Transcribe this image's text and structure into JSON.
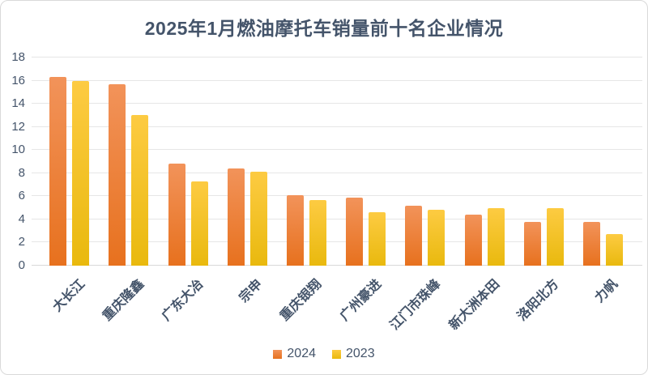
{
  "colors": {
    "background": "#FFFFFF",
    "frame_border": "#D9D9D9",
    "title_text": "#44546A",
    "axis_text": "#44546A",
    "gridline": "#E6E6E6",
    "baseline": "#D9D9D9"
  },
  "chart_data": {
    "type": "bar",
    "title": "2025年1月燃油摩托车销量前十名企业情况",
    "categories": [
      "大长江",
      "重庆隆鑫",
      "广东大冶",
      "宗申",
      "重庆银翔",
      "广州豪进",
      "江门市珠峰",
      "新大洲本田",
      "洛阳北方",
      "力帆"
    ],
    "series": [
      {
        "name": "2024",
        "color_top": "#F2935A",
        "color_bottom": "#E7711E",
        "values": [
          16.3,
          15.7,
          8.8,
          8.4,
          6.1,
          5.9,
          5.2,
          4.4,
          3.8,
          3.8
        ]
      },
      {
        "name": "2023",
        "color_top": "#FDCB42",
        "color_bottom": "#E9B90E",
        "values": [
          16.0,
          13.0,
          7.3,
          8.1,
          5.7,
          4.6,
          4.8,
          5.0,
          5.0,
          2.7
        ]
      }
    ],
    "xlabel": "",
    "ylabel": "",
    "ylim": [
      0,
      18
    ],
    "yticks": [
      0,
      2,
      4,
      6,
      8,
      10,
      12,
      14,
      16,
      18
    ],
    "grid": "horizontal",
    "legend_position": "bottom",
    "category_label_rotation_deg": 45
  }
}
